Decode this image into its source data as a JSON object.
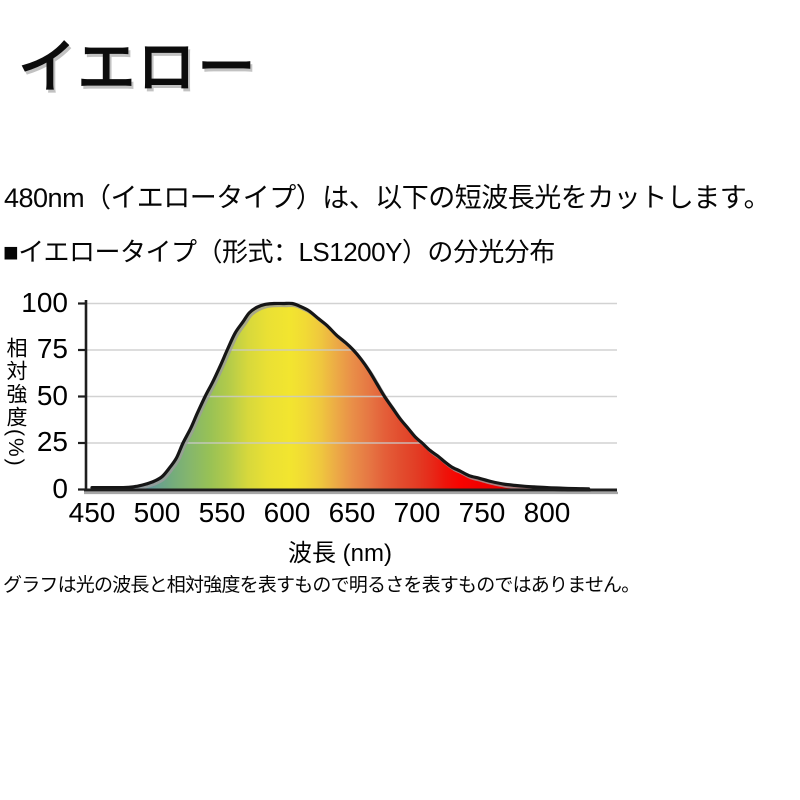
{
  "page": {
    "title": "イエロー",
    "intro": "480nm（イエロータイプ）は、以下の短波長光をカットします。",
    "chart_heading": "■イエロータイプ（形式：LS1200Y）の分光分布",
    "footnote": "グラフは光の波長と相対強度を表すもので明るさを表すものではありません。"
  },
  "chart_data": {
    "type": "area",
    "title": "イエロータイプ（形式：LS1200Y）の分光分布",
    "xlabel": "波長 (nm)",
    "ylabel": "相対強度(%)",
    "xlim": [
      450,
      835
    ],
    "ylim": [
      0,
      100
    ],
    "x_ticks": [
      450,
      500,
      550,
      600,
      650,
      700,
      750,
      800
    ],
    "y_ticks": [
      0,
      25,
      50,
      75,
      100
    ],
    "grid": "horizontal gridlines at 25/50/75/100, light gray",
    "legend": "none",
    "series": [
      {
        "name": "イエロータイプ LS1200Y 相対強度",
        "points": [
          [
            450,
            1
          ],
          [
            460,
            1
          ],
          [
            470,
            1
          ],
          [
            478,
            1.2
          ],
          [
            485,
            1.8
          ],
          [
            492,
            3
          ],
          [
            498,
            4.5
          ],
          [
            504,
            7
          ],
          [
            510,
            12
          ],
          [
            515,
            17
          ],
          [
            520,
            25
          ],
          [
            526,
            33
          ],
          [
            531,
            41
          ],
          [
            537,
            50
          ],
          [
            543,
            58
          ],
          [
            549,
            67
          ],
          [
            554,
            75
          ],
          [
            560,
            84
          ],
          [
            566,
            90
          ],
          [
            571,
            95
          ],
          [
            577,
            98
          ],
          [
            583,
            99.5
          ],
          [
            590,
            100
          ],
          [
            597,
            100
          ],
          [
            604,
            100
          ],
          [
            610,
            98.5
          ],
          [
            617,
            96
          ],
          [
            624,
            92
          ],
          [
            631,
            88
          ],
          [
            638,
            83
          ],
          [
            645,
            79
          ],
          [
            651,
            75
          ],
          [
            657,
            70
          ],
          [
            663,
            64
          ],
          [
            669,
            57
          ],
          [
            675,
            50
          ],
          [
            681,
            44
          ],
          [
            687,
            38
          ],
          [
            693,
            33
          ],
          [
            699,
            28
          ],
          [
            704,
            25
          ],
          [
            710,
            21
          ],
          [
            716,
            18
          ],
          [
            722,
            14.5
          ],
          [
            727,
            12
          ],
          [
            733,
            10
          ],
          [
            740,
            7.5
          ],
          [
            748,
            6
          ],
          [
            757,
            4.3
          ],
          [
            766,
            3
          ],
          [
            775,
            2.2
          ],
          [
            783,
            1.7
          ],
          [
            790,
            1.4
          ],
          [
            800,
            1
          ],
          [
            812,
            0.7
          ],
          [
            822,
            0.5
          ],
          [
            832,
            0.4
          ]
        ]
      }
    ],
    "fill_gradient_stops": [
      [
        450,
        "#86aab6"
      ],
      [
        488,
        "#5f90a7"
      ],
      [
        500,
        "#68a08f"
      ],
      [
        512,
        "#74ac7c"
      ],
      [
        525,
        "#85b66c"
      ],
      [
        540,
        "#97c156"
      ],
      [
        555,
        "#b3cb4a"
      ],
      [
        570,
        "#d7d83c"
      ],
      [
        585,
        "#eae034"
      ],
      [
        602,
        "#f2e52f"
      ],
      [
        614,
        "#f1da35"
      ],
      [
        626,
        "#efc73e"
      ],
      [
        638,
        "#ecaa46"
      ],
      [
        650,
        "#e98f48"
      ],
      [
        662,
        "#e67944"
      ],
      [
        675,
        "#e45f39"
      ],
      [
        688,
        "#e24c2e"
      ],
      [
        700,
        "#e23c24"
      ],
      [
        712,
        "#e72818"
      ],
      [
        722,
        "#ee130a"
      ],
      [
        733,
        "#f80300"
      ],
      [
        748,
        "#f00000"
      ],
      [
        832,
        "#e50000"
      ]
    ],
    "colors": {
      "curve": "#161616",
      "curve_shadow": "#9c9c9c",
      "axis": "#1e1e1e",
      "axis_shadow": "#a6a6a6",
      "grid": "#cacaca",
      "text": "#000000",
      "background": "#ffffff"
    }
  }
}
